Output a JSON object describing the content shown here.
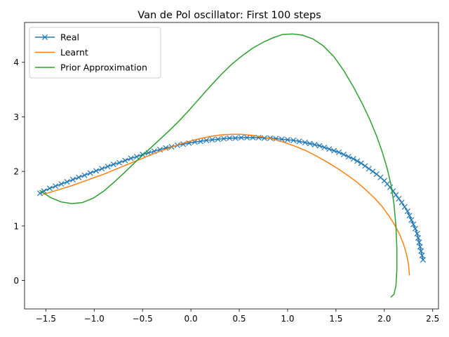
{
  "chart_data": {
    "type": "line",
    "title": "Van de Pol oscillator: First 100 steps",
    "xlabel": "",
    "ylabel": "",
    "xlim": [
      -1.72,
      2.56
    ],
    "ylim": [
      -0.52,
      4.73
    ],
    "xticks": [
      -1.5,
      -1.0,
      -0.5,
      0.0,
      0.5,
      1.0,
      1.5,
      2.0,
      2.5
    ],
    "xtick_labels": [
      "−1.5",
      "−1.0",
      "−0.5",
      "0.0",
      "0.5",
      "1.0",
      "1.5",
      "2.0",
      "2.5"
    ],
    "yticks": [
      0,
      1,
      2,
      3,
      4
    ],
    "ytick_labels": [
      "0",
      "1",
      "2",
      "3",
      "4"
    ],
    "grid": false,
    "legend_position": "upper-left",
    "series": [
      {
        "name": "Real",
        "color": "#1f77b4",
        "marker": "x",
        "x": [
          2.4,
          2.39,
          2.38,
          2.37,
          2.36,
          2.35,
          2.34,
          2.32,
          2.3,
          2.28,
          2.26,
          2.24,
          2.21,
          2.18,
          2.15,
          2.12,
          2.09,
          2.06,
          2.03,
          2.0,
          1.96,
          1.92,
          1.88,
          1.84,
          1.8,
          1.76,
          1.72,
          1.68,
          1.63,
          1.58,
          1.53,
          1.48,
          1.43,
          1.38,
          1.33,
          1.28,
          1.23,
          1.18,
          1.12,
          1.06,
          1.0,
          0.94,
          0.88,
          0.82,
          0.76,
          0.7,
          0.64,
          0.58,
          0.52,
          0.46,
          0.4,
          0.34,
          0.28,
          0.22,
          0.16,
          0.1,
          0.04,
          -0.02,
          -0.08,
          -0.14,
          -0.2,
          -0.26,
          -0.32,
          -0.38,
          -0.44,
          -0.5,
          -0.56,
          -0.62,
          -0.68,
          -0.74,
          -0.8,
          -0.86,
          -0.92,
          -0.98,
          -1.04,
          -1.1,
          -1.16,
          -1.22,
          -1.28,
          -1.34,
          -1.4,
          -1.46,
          -1.52,
          -1.56
        ],
        "y": [
          0.38,
          0.46,
          0.54,
          0.62,
          0.7,
          0.78,
          0.86,
          0.95,
          1.03,
          1.11,
          1.19,
          1.27,
          1.35,
          1.43,
          1.5,
          1.57,
          1.64,
          1.71,
          1.77,
          1.83,
          1.89,
          1.95,
          2.0,
          2.05,
          2.1,
          2.15,
          2.19,
          2.23,
          2.27,
          2.31,
          2.35,
          2.38,
          2.41,
          2.44,
          2.47,
          2.49,
          2.51,
          2.53,
          2.55,
          2.57,
          2.58,
          2.59,
          2.6,
          2.61,
          2.61,
          2.62,
          2.62,
          2.62,
          2.62,
          2.61,
          2.61,
          2.6,
          2.59,
          2.58,
          2.57,
          2.55,
          2.54,
          2.52,
          2.5,
          2.48,
          2.45,
          2.43,
          2.4,
          2.37,
          2.34,
          2.31,
          2.27,
          2.24,
          2.2,
          2.16,
          2.13,
          2.09,
          2.05,
          2.01,
          1.97,
          1.93,
          1.89,
          1.85,
          1.81,
          1.77,
          1.73,
          1.69,
          1.64,
          1.6
        ]
      },
      {
        "name": "Learnt",
        "color": "#ff7f0e",
        "x": [
          2.26,
          2.25,
          2.23,
          2.2,
          2.16,
          2.11,
          2.05,
          1.98,
          1.9,
          1.81,
          1.72,
          1.62,
          1.52,
          1.41,
          1.3,
          1.19,
          1.08,
          0.97,
          0.86,
          0.75,
          0.64,
          0.53,
          0.42,
          0.31,
          0.2,
          0.09,
          -0.02,
          -0.13,
          -0.24,
          -0.35,
          -0.46,
          -0.57,
          -0.68,
          -0.79,
          -0.9,
          -1.01,
          -1.12,
          -1.23,
          -1.34,
          -1.45,
          -1.53
        ],
        "y": [
          0.1,
          0.3,
          0.48,
          0.66,
          0.84,
          1.01,
          1.18,
          1.35,
          1.51,
          1.66,
          1.8,
          1.93,
          2.05,
          2.17,
          2.28,
          2.38,
          2.46,
          2.53,
          2.59,
          2.63,
          2.66,
          2.68,
          2.68,
          2.67,
          2.64,
          2.6,
          2.55,
          2.49,
          2.42,
          2.35,
          2.27,
          2.19,
          2.11,
          2.03,
          1.95,
          1.88,
          1.81,
          1.74,
          1.68,
          1.62,
          1.58
        ]
      },
      {
        "name": "Prior Approximation",
        "color": "#2ca02c",
        "x": [
          2.07,
          2.1,
          2.12,
          2.13,
          2.13,
          2.12,
          2.1,
          2.07,
          2.03,
          1.98,
          1.92,
          1.85,
          1.77,
          1.68,
          1.58,
          1.48,
          1.37,
          1.26,
          1.15,
          1.05,
          0.95,
          0.85,
          0.75,
          0.64,
          0.53,
          0.42,
          0.31,
          0.2,
          0.09,
          -0.02,
          -0.13,
          -0.24,
          -0.35,
          -0.46,
          -0.57,
          -0.68,
          -0.79,
          -0.9,
          -1.01,
          -1.12,
          -1.23,
          -1.34,
          -1.45,
          -1.56
        ],
        "y": [
          -0.3,
          -0.25,
          -0.1,
          0.2,
          0.6,
          1.0,
          1.4,
          1.75,
          2.05,
          2.35,
          2.65,
          2.95,
          3.25,
          3.55,
          3.85,
          4.1,
          4.3,
          4.43,
          4.5,
          4.52,
          4.51,
          4.45,
          4.37,
          4.26,
          4.12,
          3.96,
          3.77,
          3.56,
          3.34,
          3.12,
          2.91,
          2.72,
          2.54,
          2.36,
          2.18,
          1.99,
          1.81,
          1.64,
          1.51,
          1.43,
          1.41,
          1.44,
          1.52,
          1.65
        ]
      }
    ]
  }
}
